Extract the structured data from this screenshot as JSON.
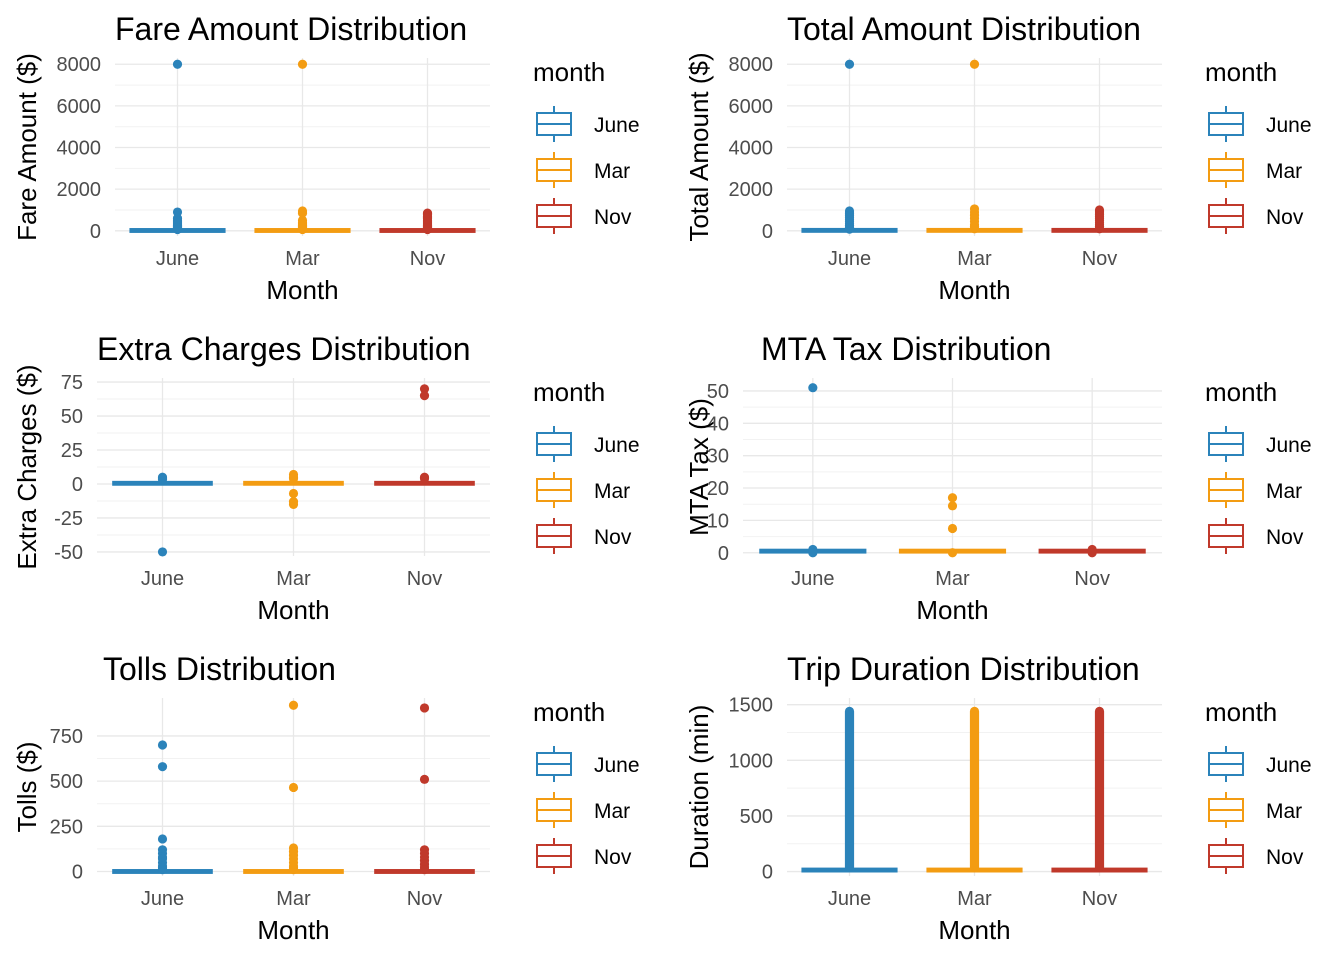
{
  "legend": {
    "title": "month",
    "entries": [
      {
        "label": "June",
        "color": "#2b83ba"
      },
      {
        "label": "Mar",
        "color": "#f39c12"
      },
      {
        "label": "Nov",
        "color": "#c0392b"
      }
    ]
  },
  "chart_data": [
    {
      "type": "boxplot",
      "title": "Fare Amount Distribution",
      "xlabel": "Month",
      "ylabel": "Fare Amount ($)",
      "categories": [
        "June",
        "Mar",
        "Nov"
      ],
      "yticks": [
        0,
        2000,
        4000,
        6000,
        8000
      ],
      "ylim": [
        -250,
        8300
      ],
      "grid": true,
      "legend_position": "right",
      "series": [
        {
          "category": "June",
          "box": [
            5,
            10,
            14,
            20,
            40
          ],
          "outliers": [
            8000,
            900,
            600,
            500,
            450,
            400,
            350,
            300,
            250,
            200,
            150,
            100,
            60
          ]
        },
        {
          "category": "Mar",
          "box": [
            5,
            10,
            14,
            20,
            40
          ],
          "outliers": [
            8000,
            950,
            850,
            500,
            400,
            350,
            300,
            250,
            200,
            150,
            100,
            60
          ]
        },
        {
          "category": "Nov",
          "box": [
            5,
            10,
            14,
            20,
            40
          ],
          "outliers": [
            850,
            800,
            700,
            650,
            600,
            500,
            450,
            400,
            350,
            300,
            250,
            200,
            150,
            100,
            60
          ]
        }
      ]
    },
    {
      "type": "boxplot",
      "title": "Total Amount Distribution",
      "xlabel": "Month",
      "ylabel": "Total Amount ($)",
      "categories": [
        "June",
        "Mar",
        "Nov"
      ],
      "yticks": [
        0,
        2000,
        4000,
        6000,
        8000
      ],
      "ylim": [
        -250,
        8300
      ],
      "grid": true,
      "legend_position": "right",
      "series": [
        {
          "category": "June",
          "box": [
            8,
            14,
            19,
            27,
            50
          ],
          "outliers": [
            8000,
            950,
            850,
            750,
            650,
            550,
            450,
            350,
            250,
            150,
            80
          ]
        },
        {
          "category": "Mar",
          "box": [
            8,
            14,
            19,
            27,
            50
          ],
          "outliers": [
            8000,
            1050,
            900,
            750,
            600,
            450,
            300,
            200,
            100
          ]
        },
        {
          "category": "Nov",
          "box": [
            8,
            14,
            19,
            27,
            50
          ],
          "outliers": [
            1000,
            950,
            900,
            800,
            700,
            600,
            500,
            400,
            300,
            200,
            100
          ]
        }
      ]
    },
    {
      "type": "boxplot",
      "title": "Extra Charges Distribution",
      "xlabel": "Month",
      "ylabel": "Extra Charges ($)",
      "categories": [
        "June",
        "Mar",
        "Nov"
      ],
      "yticks": [
        -50,
        -25,
        0,
        25,
        50,
        75
      ],
      "ylim": [
        -53,
        78
      ],
      "grid": true,
      "legend_position": "right",
      "series": [
        {
          "category": "June",
          "box": [
            0,
            0,
            0.5,
            1,
            2.5
          ],
          "outliers": [
            5,
            4,
            3.5,
            -50
          ]
        },
        {
          "category": "Mar",
          "box": [
            0,
            0,
            0.5,
            1,
            2.5
          ],
          "outliers": [
            7,
            5,
            4,
            -7,
            -13,
            -15
          ]
        },
        {
          "category": "Nov",
          "box": [
            0,
            0,
            0.5,
            1,
            2.5
          ],
          "outliers": [
            70,
            65,
            5,
            4
          ]
        }
      ]
    },
    {
      "type": "boxplot",
      "title": "MTA Tax Distribution",
      "xlabel": "Month",
      "ylabel": "MTA Tax ($)",
      "categories": [
        "June",
        "Mar",
        "Nov"
      ],
      "yticks": [
        0,
        10,
        20,
        30,
        40,
        50
      ],
      "ylim": [
        -1,
        54
      ],
      "grid": true,
      "legend_position": "right",
      "series": [
        {
          "category": "June",
          "box": [
            0.5,
            0.5,
            0.5,
            0.5,
            0.5
          ],
          "outliers": [
            51,
            1,
            0
          ]
        },
        {
          "category": "Mar",
          "box": [
            0.5,
            0.5,
            0.5,
            0.5,
            0.5
          ],
          "outliers": [
            17,
            14.5,
            7.5,
            0
          ]
        },
        {
          "category": "Nov",
          "box": [
            0.5,
            0.5,
            0.5,
            0.5,
            0.5
          ],
          "outliers": [
            0,
            1
          ]
        }
      ]
    },
    {
      "type": "boxplot",
      "title": "Tolls Distribution",
      "xlabel": "Month",
      "ylabel": "Tolls ($)",
      "categories": [
        "June",
        "Mar",
        "Nov"
      ],
      "yticks": [
        0,
        250,
        500,
        750
      ],
      "ylim": [
        -25,
        960
      ],
      "grid": true,
      "legend_position": "right",
      "series": [
        {
          "category": "June",
          "box": [
            0,
            0,
            0,
            0,
            0
          ],
          "outliers": [
            700,
            580,
            180,
            120,
            100,
            80,
            70,
            50,
            30,
            20,
            10
          ]
        },
        {
          "category": "Mar",
          "box": [
            0,
            0,
            0,
            0,
            0
          ],
          "outliers": [
            920,
            465,
            130,
            110,
            90,
            70,
            50,
            30,
            20,
            10
          ]
        },
        {
          "category": "Nov",
          "box": [
            0,
            0,
            0,
            0,
            0
          ],
          "outliers": [
            905,
            510,
            120,
            100,
            80,
            60,
            40,
            25,
            10
          ]
        }
      ]
    },
    {
      "type": "boxplot",
      "title": "Trip Duration Distribution",
      "xlabel": "Month",
      "ylabel": "Duration (min)",
      "categories": [
        "June",
        "Mar",
        "Nov"
      ],
      "yticks": [
        0,
        500,
        1000,
        1500
      ],
      "ylim": [
        -40,
        1560
      ],
      "grid": true,
      "legend_position": "right",
      "series": [
        {
          "category": "June",
          "box": [
            1,
            7,
            12,
            20,
            40
          ],
          "outliers_range": [
            40,
            1440
          ]
        },
        {
          "category": "Mar",
          "box": [
            1,
            7,
            12,
            20,
            40
          ],
          "outliers_range": [
            40,
            1440
          ]
        },
        {
          "category": "Nov",
          "box": [
            1,
            7,
            12,
            20,
            40
          ],
          "outliers_range": [
            40,
            1440
          ]
        }
      ]
    }
  ]
}
